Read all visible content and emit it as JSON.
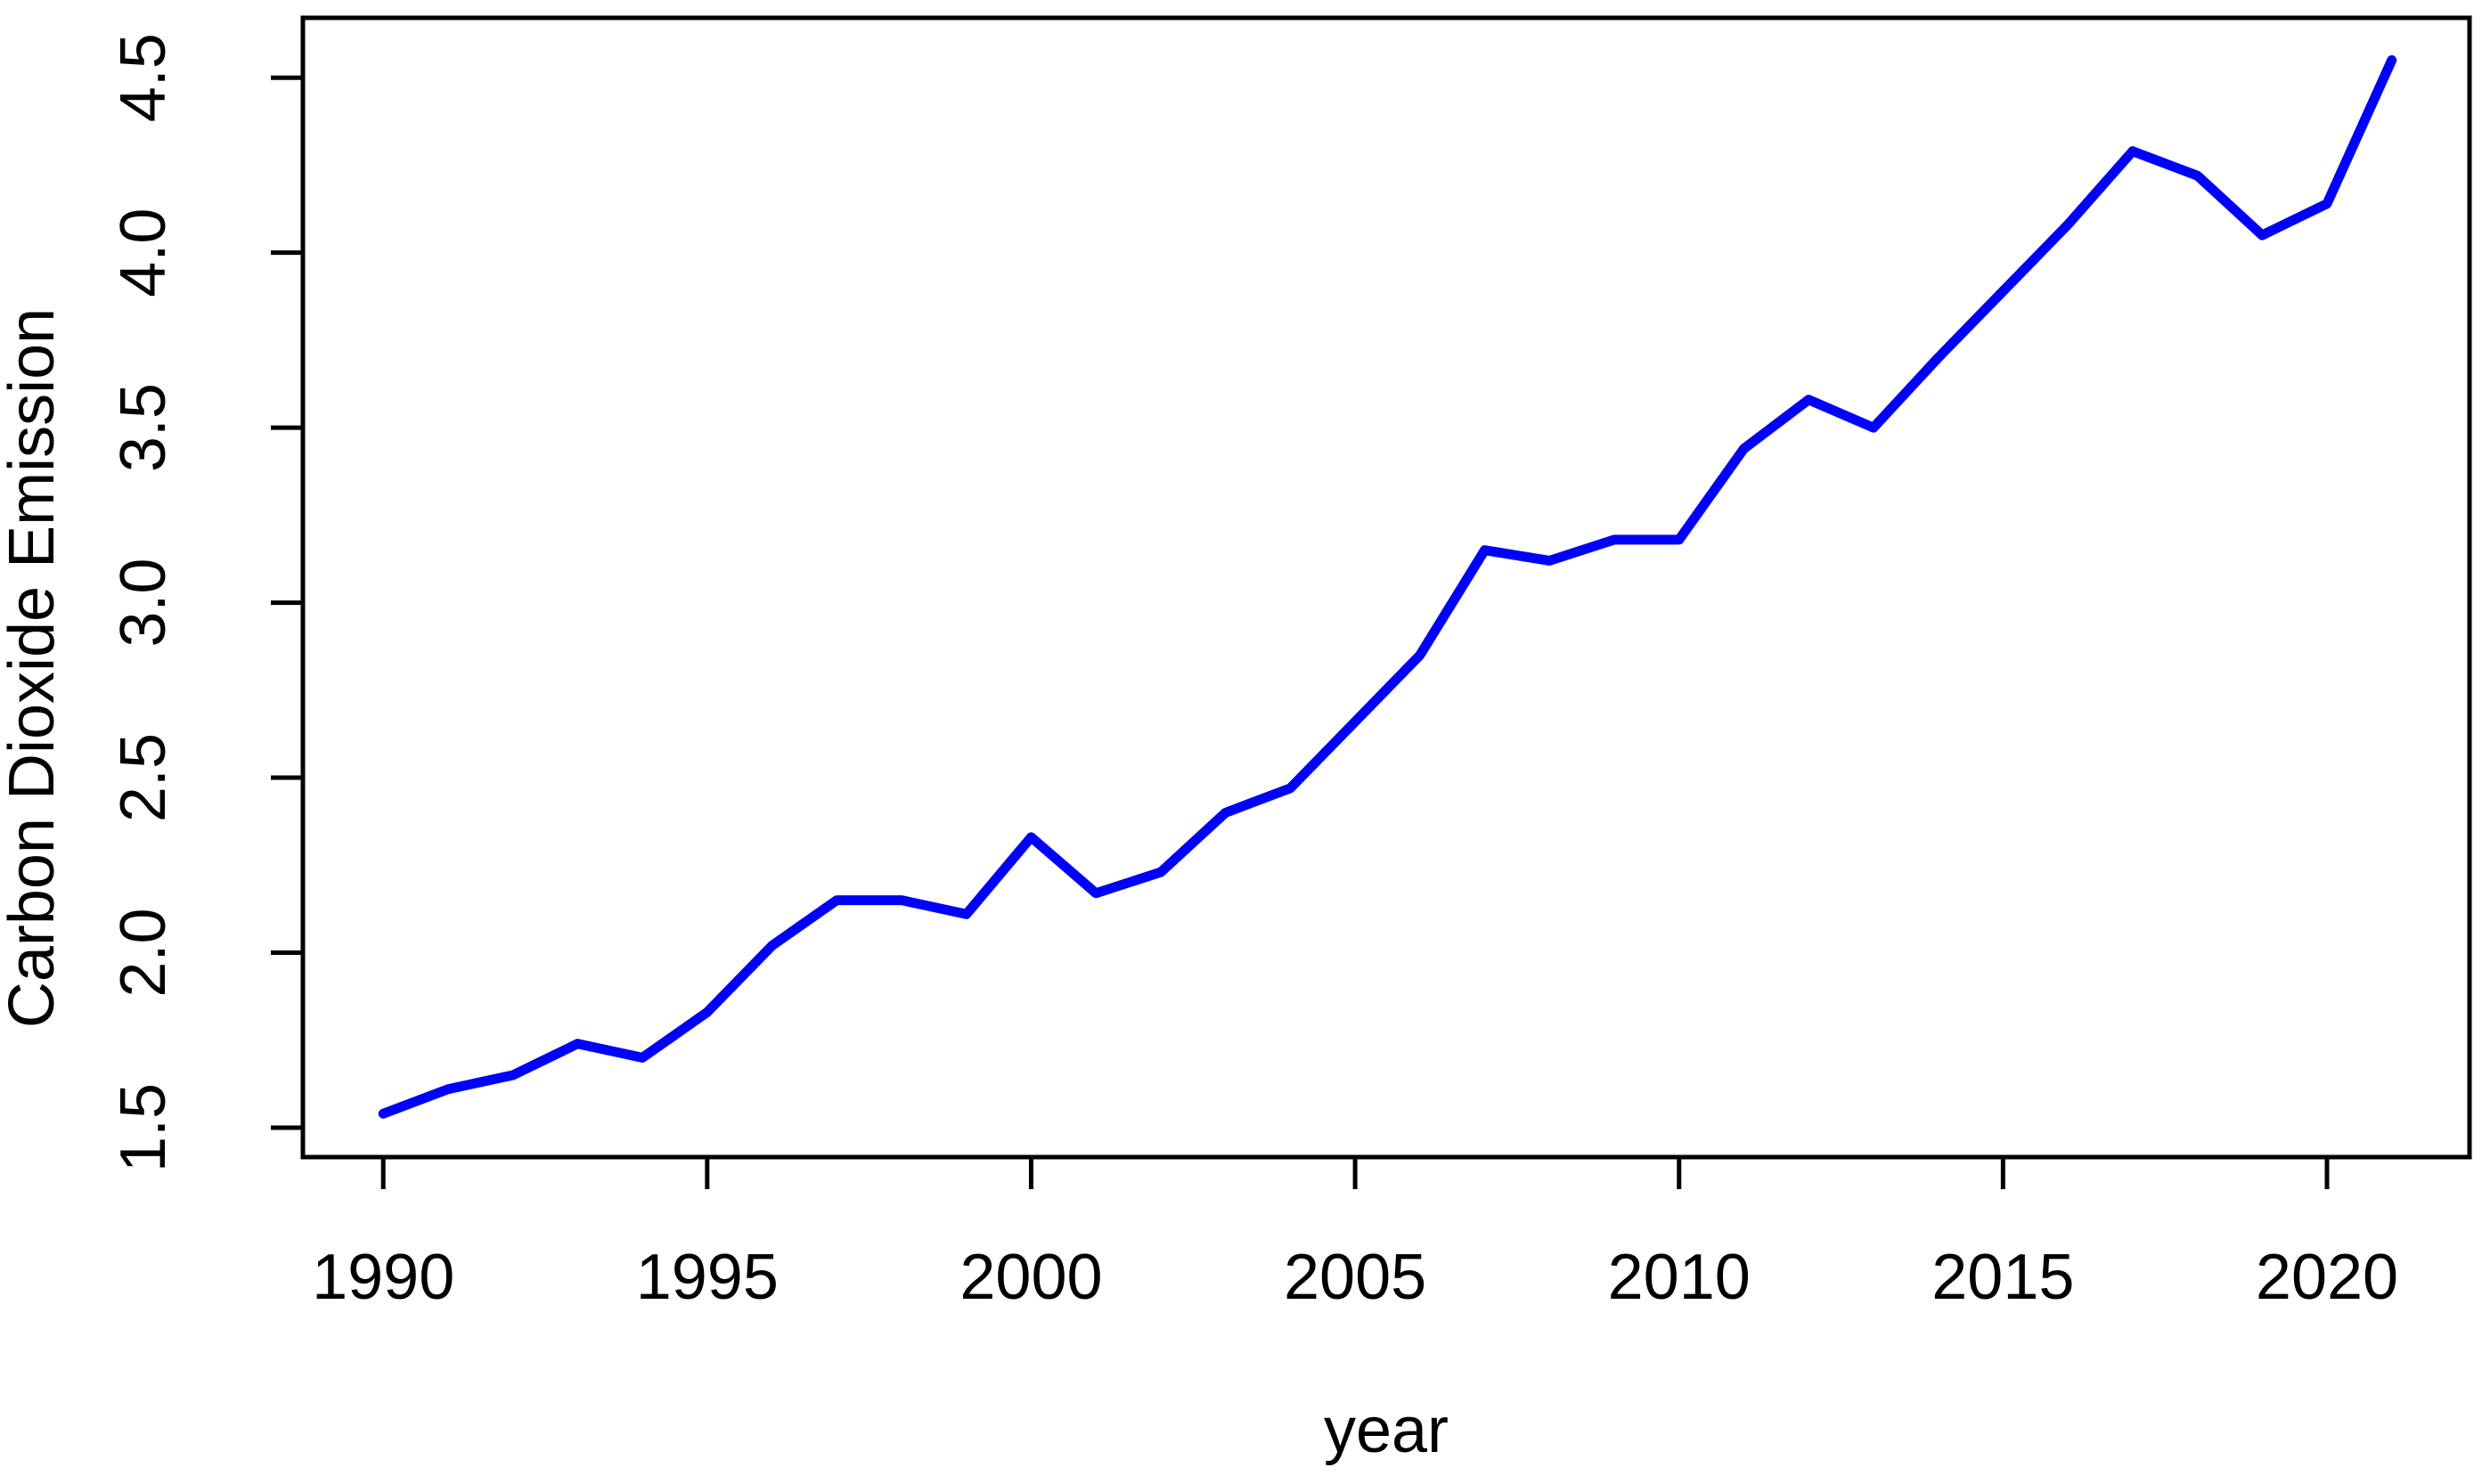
{
  "figure": {
    "background_color": "#ffffff",
    "axis_color": "#000000",
    "text_color": "#000000",
    "line_color": "#0000ff"
  },
  "chart_data": {
    "type": "line",
    "title": "",
    "xlabel": "year",
    "ylabel": "Carbon Dioxide Emission",
    "series": [
      {
        "name": "Carbon Dioxide Emission",
        "color": "#0000ff",
        "x": [
          1990,
          1991,
          1992,
          1993,
          1994,
          1995,
          1996,
          1997,
          1998,
          1999,
          2000,
          2001,
          2002,
          2003,
          2004,
          2005,
          2006,
          2007,
          2008,
          2009,
          2010,
          2011,
          2012,
          2013,
          2014,
          2015,
          2016,
          2017,
          2018,
          2019,
          2020,
          2021
        ],
        "y": [
          1.54,
          1.61,
          1.65,
          1.74,
          1.7,
          1.83,
          2.02,
          2.15,
          2.15,
          2.11,
          2.33,
          2.17,
          2.23,
          2.4,
          2.47,
          2.66,
          2.85,
          3.15,
          3.12,
          3.18,
          3.18,
          3.44,
          3.58,
          3.5,
          3.7,
          3.89,
          4.08,
          4.29,
          4.22,
          4.05,
          4.14,
          4.55
        ]
      }
    ],
    "xlim": [
      1988.76,
      2022.2
    ],
    "ylim": [
      1.416,
      4.671
    ],
    "x_ticks": [
      1990,
      1995,
      2000,
      2005,
      2010,
      2015,
      2020
    ],
    "x_tick_labels": [
      "1990",
      "1995",
      "2000",
      "2005",
      "2010",
      "2015",
      "2020"
    ],
    "y_ticks": [
      1.5,
      2.0,
      2.5,
      3.0,
      3.5,
      4.0,
      4.5
    ],
    "y_tick_labels": [
      "1.5",
      "2.0",
      "2.5",
      "3.0",
      "3.5",
      "4.0",
      "4.5"
    ],
    "grid": false,
    "legend": "none"
  }
}
